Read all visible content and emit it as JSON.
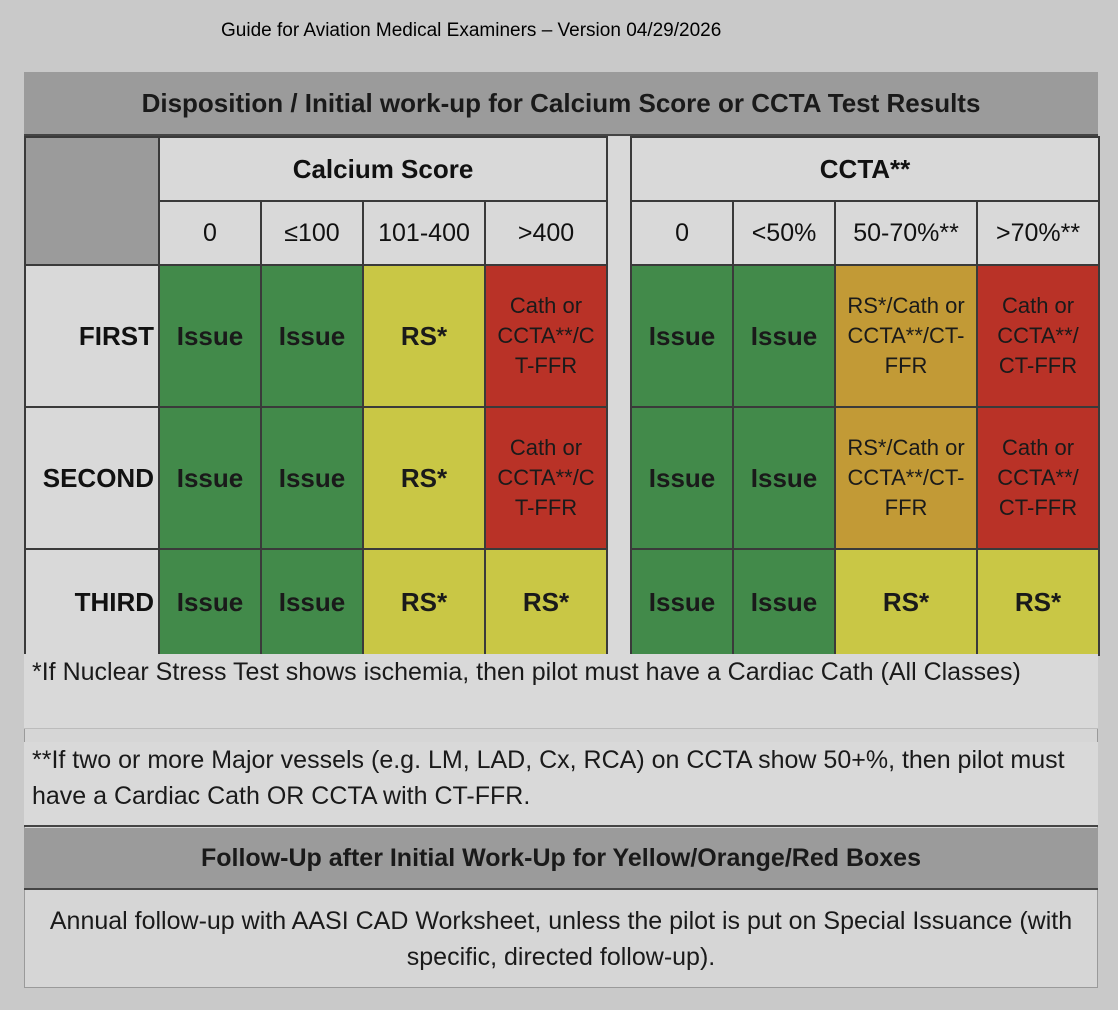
{
  "page_header": "Guide for Aviation Medical Examiners – Version 04/29/2026",
  "title": "Disposition / Initial work-up for Calcium Score or CCTA Test Results",
  "groups": {
    "calcium": "Calcium Score",
    "ccta": "CCTA**"
  },
  "columns": {
    "calcium": [
      "0",
      "≤100",
      "101-400",
      ">400"
    ],
    "ccta": [
      "0",
      "<50%",
      "50-70%**",
      ">70%**"
    ]
  },
  "rows": [
    {
      "label": "FIRST",
      "calcium": [
        "Issue",
        "Issue",
        "RS*",
        "Cath or\nCCTA**/C\nT-FFR"
      ],
      "ccta": [
        "Issue",
        "Issue",
        "RS*/Cath or\nCCTA**/CT-\nFFR",
        "Cath or\nCCTA**/\nCT-FFR"
      ]
    },
    {
      "label": "SECOND",
      "calcium": [
        "Issue",
        "Issue",
        "RS*",
        "Cath or\nCCTA**/C\nT-FFR"
      ],
      "ccta": [
        "Issue",
        "Issue",
        "RS*/Cath or\nCCTA**/CT-\nFFR",
        "Cath or\nCCTA**/\nCT-FFR"
      ]
    },
    {
      "label": "THIRD",
      "calcium": [
        "Issue",
        "Issue",
        "RS*",
        "RS*"
      ],
      "ccta": [
        "Issue",
        "Issue",
        "RS*",
        "RS*"
      ]
    }
  ],
  "colors": {
    "green": "#428a4a",
    "yellow": "#c9c745",
    "orange": "#c29a36",
    "red": "#b93227",
    "header_gray": "#9b9b9b"
  },
  "notes": [
    "*If Nuclear Stress Test shows ischemia, then pilot must have a Cardiac Cath (All Classes)",
    "**If two or more Major vessels (e.g. LM, LAD, Cx, RCA) on CCTA show 50+%, then pilot must have a Cardiac Cath OR CCTA with CT-FFR."
  ],
  "followup": {
    "title": "Follow-Up after Initial Work-Up for Yellow/Orange/Red Boxes",
    "text": "Annual follow-up with AASI CAD Worksheet, unless the pilot is put on Special Issuance (with specific, directed follow-up)."
  }
}
